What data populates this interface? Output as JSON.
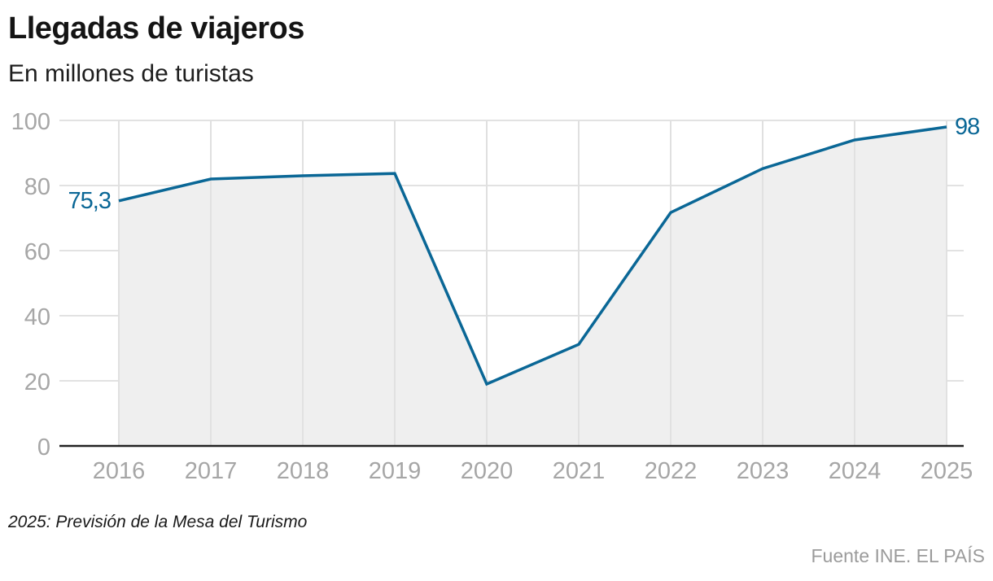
{
  "header": {
    "title": "Llegadas de viajeros",
    "subtitle": "En millones de turistas"
  },
  "footer": {
    "note": "2025: Previsión de la Mesa del Turismo",
    "source": "Fuente INE. EL PAÍS"
  },
  "colors": {
    "line": "#0a6796",
    "area": "#efefef",
    "grid": "#e2e2e2",
    "axis": "#222222",
    "tick_label": "#a6a6a6",
    "label": "#0a6796"
  },
  "chart_data": {
    "type": "area",
    "title": "Llegadas de viajeros",
    "subtitle": "En millones de turistas",
    "xlabel": "",
    "ylabel": "En millones de turistas",
    "categories": [
      "2016",
      "2017",
      "2018",
      "2019",
      "2020",
      "2021",
      "2022",
      "2023",
      "2024",
      "2025"
    ],
    "series": [
      {
        "name": "Llegadas de viajeros",
        "values": [
          75.3,
          82,
          83,
          83.7,
          19,
          31.2,
          71.7,
          85.2,
          94,
          98
        ]
      }
    ],
    "ylim": [
      0,
      100
    ],
    "yticks": [
      0,
      20,
      40,
      60,
      80,
      100
    ],
    "grid": true,
    "legend": "none",
    "annotations": [
      {
        "x": "2016",
        "text": "75,3",
        "position": "left"
      },
      {
        "x": "2025",
        "text": "98",
        "position": "right"
      }
    ],
    "note": "2025: Previsión de la Mesa del Turismo",
    "source": "Fuente INE. EL PAÍS"
  }
}
